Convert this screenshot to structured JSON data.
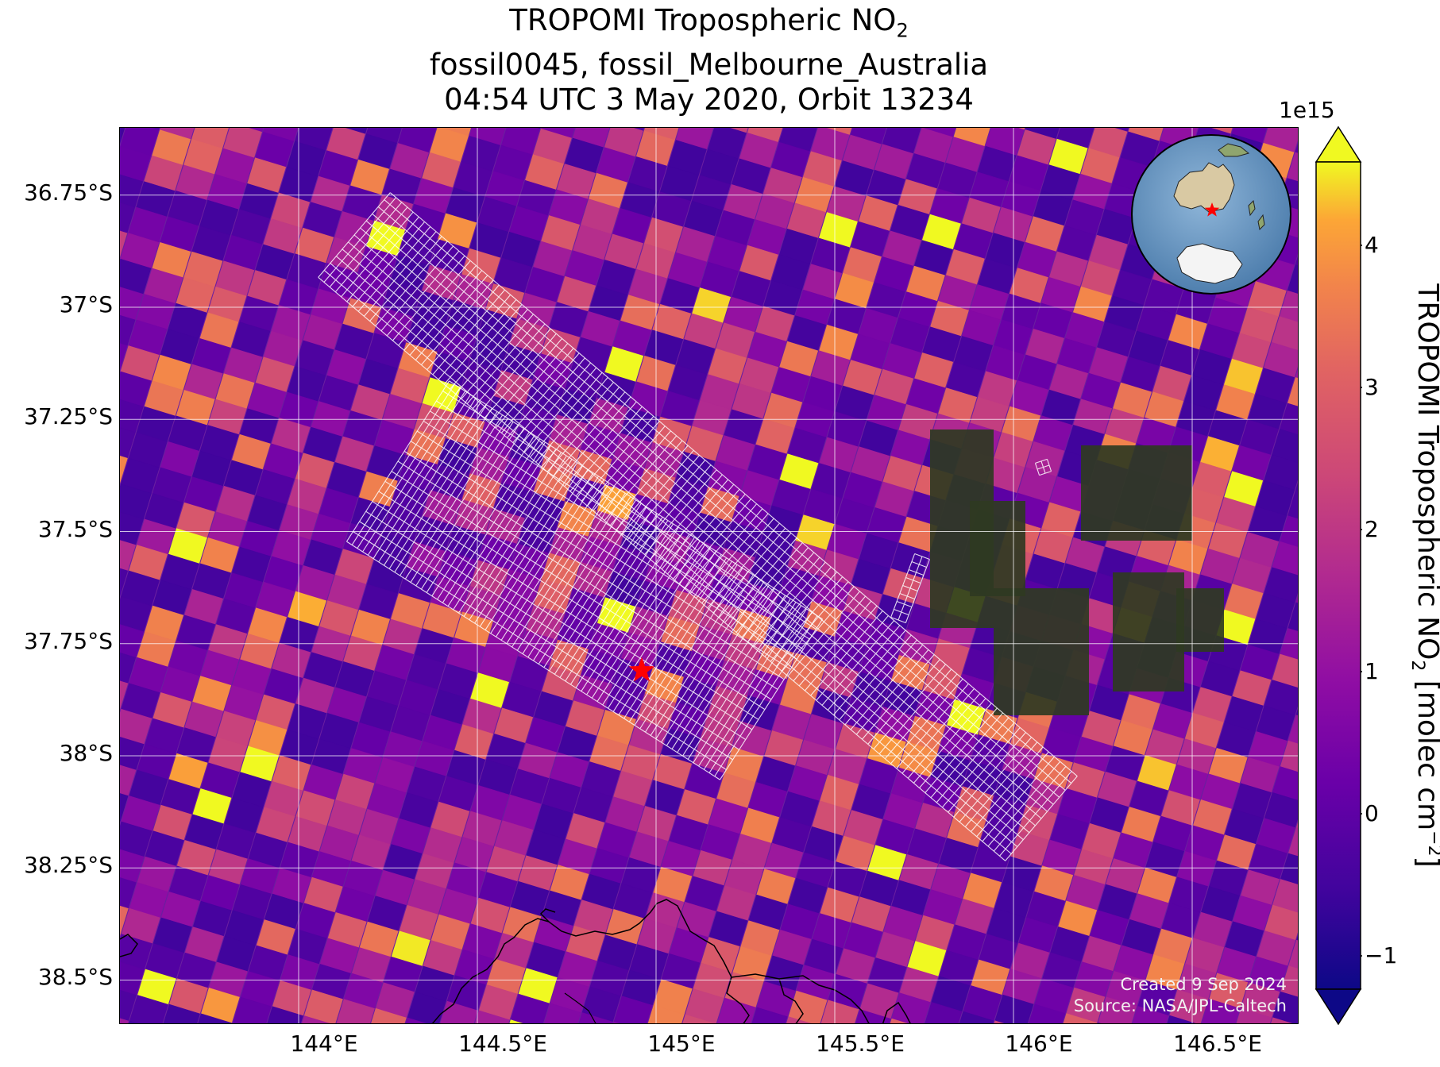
{
  "title": {
    "line1_main": "TROPOMI Tropospheric NO",
    "line1_sub": "2",
    "line2": "fossil0045, fossil_Melbourne_Australia",
    "line3": "04:54 UTC 3 May 2020, Orbit 13234"
  },
  "y_ticks": [
    "36.75°S",
    "37°S",
    "37.25°S",
    "37.5°S",
    "37.75°S",
    "38°S",
    "38.25°S",
    "38.5°S"
  ],
  "x_ticks": [
    "144°E",
    "144.5°E",
    "145°E",
    "145.5°E",
    "146°E",
    "146.5°E"
  ],
  "credit": {
    "line1": "Created 9 Sep 2024",
    "line2": "Source: NASA/JPL-Caltech"
  },
  "colorbar": {
    "exponent": "1e15",
    "ticks": [
      "4",
      "3",
      "2",
      "1",
      "0",
      "−1"
    ],
    "tick_values": [
      4,
      3,
      2,
      1,
      0,
      -1
    ],
    "range": [
      -1.2,
      4.5
    ],
    "label_main": "TROPOMI Tropospheric NO",
    "label_sub": "2",
    "label_units": " [molec cm",
    "label_sup": "−2",
    "label_end": "]",
    "colormap": "plasma",
    "extend": "both"
  },
  "map": {
    "lon_range": [
      143.5,
      146.8
    ],
    "lat_range": [
      -38.6,
      -36.6
    ],
    "grid": true,
    "site_marker": {
      "lon": 144.96,
      "lat": -37.81,
      "color": "#ff0000",
      "icon": "star-icon"
    },
    "inset": {
      "type": "orthographic-globe",
      "marker_color": "#ff0000"
    }
  },
  "chart_data": {
    "type": "heatmap",
    "title": "TROPOMI Tropospheric NO2 fossil0045, fossil_Melbourne_Australia 04:54 UTC 3 May 2020, Orbit 13234",
    "xlabel": "",
    "ylabel": "",
    "xlim": [
      143.5,
      146.8
    ],
    "ylim": [
      -38.6,
      -36.6
    ],
    "x_ticks": [
      144,
      144.5,
      145,
      145.5,
      146,
      146.5
    ],
    "y_ticks": [
      -36.75,
      -37,
      -37.25,
      -37.5,
      -37.75,
      -38,
      -38.25,
      -38.5
    ],
    "colorbar_range": [
      -1.2,
      4.5
    ],
    "colorbar_scale": "1e15",
    "grid": true
  }
}
